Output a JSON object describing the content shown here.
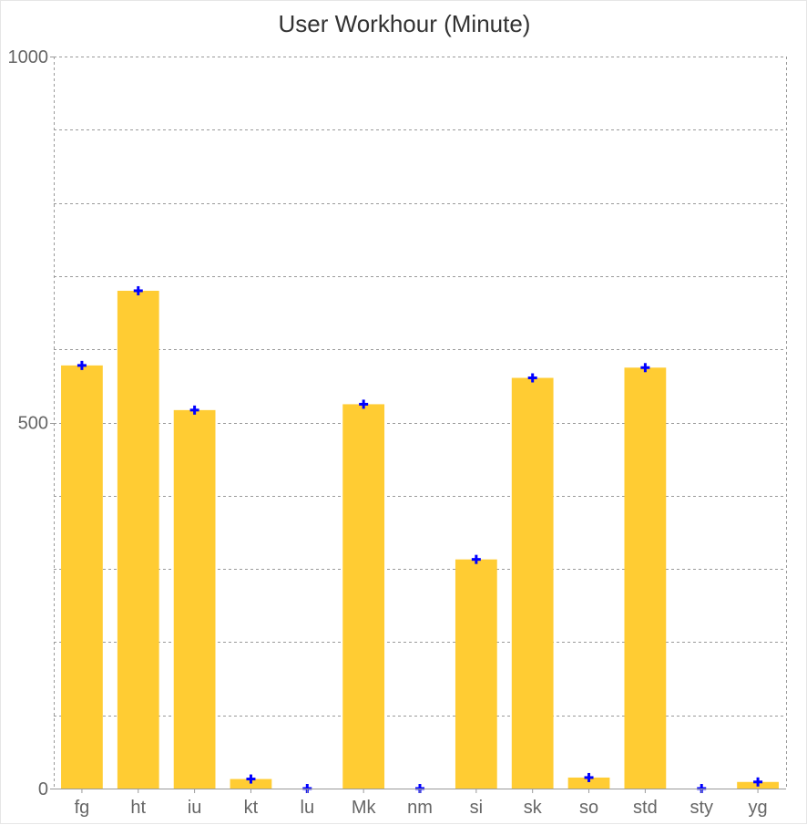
{
  "chart_data": {
    "type": "bar",
    "title": "User Workhour (Minute)",
    "xlabel": "",
    "ylabel": "",
    "categories": [
      "fg",
      "ht",
      "iu",
      "kt",
      "lu",
      "Mk",
      "nm",
      "si",
      "sk",
      "so",
      "std",
      "sty",
      "yg"
    ],
    "values": [
      578,
      680,
      517,
      13,
      0,
      525,
      0,
      313,
      561,
      15,
      575,
      0,
      9
    ],
    "ylim": [
      0,
      1000
    ],
    "yticks": [
      0,
      500,
      1000
    ],
    "grid": true,
    "bar_color": "#ffcc33",
    "marker_color": "#0000ff",
    "marker": "plus"
  }
}
